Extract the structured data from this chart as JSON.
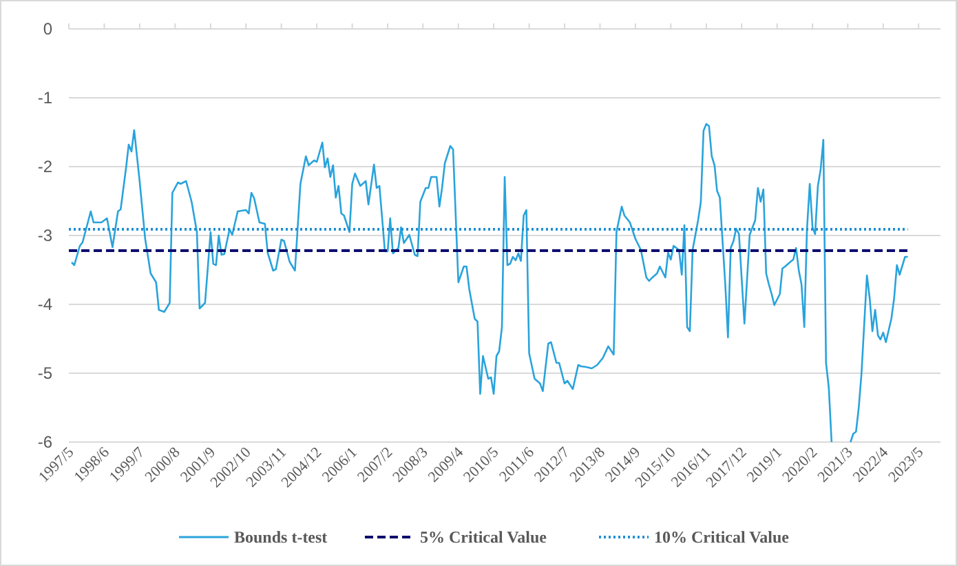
{
  "chart_data": {
    "type": "line",
    "xlim": [
      "1997-05",
      "2024-01"
    ],
    "ylim": [
      -6,
      0
    ],
    "yticks": [
      0,
      -1,
      -2,
      -3,
      -4,
      -5,
      -6
    ],
    "xticks": [
      {
        "value": "1997-05",
        "label": "1997/5"
      },
      {
        "value": "1998-06",
        "label": "1998/6"
      },
      {
        "value": "1999-07",
        "label": "1999/7"
      },
      {
        "value": "2000-08",
        "label": "2000/8"
      },
      {
        "value": "2001-09",
        "label": "2001/9"
      },
      {
        "value": "2002-10",
        "label": "2002/10"
      },
      {
        "value": "2003-11",
        "label": "2003/11"
      },
      {
        "value": "2004-12",
        "label": "2004/12"
      },
      {
        "value": "2006-01",
        "label": "2006/1"
      },
      {
        "value": "2007-02",
        "label": "2007/2"
      },
      {
        "value": "2008-03",
        "label": "2008/3"
      },
      {
        "value": "2009-04",
        "label": "2009/4"
      },
      {
        "value": "2010-05",
        "label": "2010/5"
      },
      {
        "value": "2011-06",
        "label": "2011/6"
      },
      {
        "value": "2012-07",
        "label": "2012/7"
      },
      {
        "value": "2013-08",
        "label": "2013/8"
      },
      {
        "value": "2014-09",
        "label": "2014/9"
      },
      {
        "value": "2015-10",
        "label": "2015/10"
      },
      {
        "value": "2016-11",
        "label": "2016/11"
      },
      {
        "value": "2017-12",
        "label": "2017/12"
      },
      {
        "value": "2019-01",
        "label": "2019/1"
      },
      {
        "value": "2020-02",
        "label": "2020/2"
      },
      {
        "value": "2021-03",
        "label": "2021/3"
      },
      {
        "value": "2022-04",
        "label": "2022/4"
      },
      {
        "value": "2023-05",
        "label": "2023/5"
      }
    ],
    "grid": "y",
    "legend": "bottom",
    "marker": "none",
    "series": [
      {
        "name": "Bounds t-test",
        "color": "#29a3dc",
        "line_style": "solid",
        "x": [
          "1997-06",
          "1997-07",
          "1997-09",
          "1997-10",
          "1998-01",
          "1998-02",
          "1998-05",
          "1998-07",
          "1998-09",
          "1998-11",
          "1998-12",
          "1999-02",
          "1999-03",
          "1999-04",
          "1999-05",
          "1999-07",
          "1999-09",
          "1999-11",
          "2000-01",
          "2000-02",
          "2000-04",
          "2000-06",
          "2000-07",
          "2000-09",
          "2000-10",
          "2000-12",
          "2001-02",
          "2001-04",
          "2001-05",
          "2001-07",
          "2001-09",
          "2001-10",
          "2001-11",
          "2001-12",
          "2002-01",
          "2002-02",
          "2002-04",
          "2002-05",
          "2002-07",
          "2002-10",
          "2002-11",
          "2002-12",
          "2003-01",
          "2003-03",
          "2003-05",
          "2003-06",
          "2003-08",
          "2003-09",
          "2003-11",
          "2003-12",
          "2004-02",
          "2004-04",
          "2004-06",
          "2004-08",
          "2004-09",
          "2004-11",
          "2004-12",
          "2005-02",
          "2005-03",
          "2005-04",
          "2005-05",
          "2005-06",
          "2005-07",
          "2005-08",
          "2005-09",
          "2005-10",
          "2005-12",
          "2006-01",
          "2006-02",
          "2006-04",
          "2006-06",
          "2006-07",
          "2006-09",
          "2006-10",
          "2006-11",
          "2007-01",
          "2007-02",
          "2007-03",
          "2007-04",
          "2007-06",
          "2007-07",
          "2007-08",
          "2007-10",
          "2007-12",
          "2008-01",
          "2008-02",
          "2008-04",
          "2008-05",
          "2008-06",
          "2008-08",
          "2008-09",
          "2008-10",
          "2008-11",
          "2009-01",
          "2009-02",
          "2009-04",
          "2009-06",
          "2009-07",
          "2009-08",
          "2009-10",
          "2009-11",
          "2009-12",
          "2010-01",
          "2010-03",
          "2010-04",
          "2010-05",
          "2010-06",
          "2010-07",
          "2010-08",
          "2010-09",
          "2010-10",
          "2010-11",
          "2010-12",
          "2011-01",
          "2011-02",
          "2011-03",
          "2011-04",
          "2011-05",
          "2011-06",
          "2011-08",
          "2011-10",
          "2011-11",
          "2012-01",
          "2012-02",
          "2012-04",
          "2012-05",
          "2012-07",
          "2012-08",
          "2012-10",
          "2012-12",
          "2013-01",
          "2013-03",
          "2013-05",
          "2013-07",
          "2013-09",
          "2013-11",
          "2014-01",
          "2014-02",
          "2014-04",
          "2014-05",
          "2014-07",
          "2014-09",
          "2014-11",
          "2015-01",
          "2015-02",
          "2015-03",
          "2015-05",
          "2015-06",
          "2015-08",
          "2015-09",
          "2015-10",
          "2015-11",
          "2016-01",
          "2016-02",
          "2016-03",
          "2016-04",
          "2016-05",
          "2016-06",
          "2016-08",
          "2016-09",
          "2016-10",
          "2016-11",
          "2016-12",
          "2017-01",
          "2017-02",
          "2017-03",
          "2017-04",
          "2017-06",
          "2017-07",
          "2017-08",
          "2017-09",
          "2017-10",
          "2017-11",
          "2018-01",
          "2018-03",
          "2018-05",
          "2018-06",
          "2018-07",
          "2018-08",
          "2018-09",
          "2018-10",
          "2018-11",
          "2018-12",
          "2019-02",
          "2019-03",
          "2019-04",
          "2019-06",
          "2019-07",
          "2019-08",
          "2019-09",
          "2019-10",
          "2019-11",
          "2019-12",
          "2020-01",
          "2020-02",
          "2020-03",
          "2020-04",
          "2020-05",
          "2020-06",
          "2020-07",
          "2020-08",
          "2020-09",
          "2020-10",
          "2021-04",
          "2021-05",
          "2021-06",
          "2021-07",
          "2021-08",
          "2021-10",
          "2021-11",
          "2021-12",
          "2022-01",
          "2022-02",
          "2022-03",
          "2022-04",
          "2022-05",
          "2022-07",
          "2022-08",
          "2022-09",
          "2022-10",
          "2022-12",
          "2023-01"
        ],
        "values": [
          -3.39,
          -3.43,
          -3.15,
          -3.1,
          -2.65,
          -2.81,
          -2.81,
          -2.75,
          -3.17,
          -2.65,
          -2.62,
          -2.0,
          -1.68,
          -1.78,
          -1.47,
          -2.21,
          -3.05,
          -3.55,
          -3.68,
          -4.08,
          -4.11,
          -3.98,
          -2.38,
          -2.23,
          -2.25,
          -2.21,
          -2.51,
          -2.95,
          -4.06,
          -3.98,
          -2.95,
          -3.41,
          -3.43,
          -3.0,
          -3.28,
          -3.27,
          -2.91,
          -2.99,
          -2.65,
          -2.63,
          -2.68,
          -2.38,
          -2.46,
          -2.81,
          -2.83,
          -3.25,
          -3.51,
          -3.49,
          -3.06,
          -3.08,
          -3.38,
          -3.51,
          -2.25,
          -1.85,
          -1.98,
          -1.91,
          -1.93,
          -1.65,
          -2.01,
          -1.88,
          -2.15,
          -1.98,
          -2.45,
          -2.28,
          -2.68,
          -2.71,
          -2.95,
          -2.25,
          -2.1,
          -2.28,
          -2.21,
          -2.55,
          -1.97,
          -2.31,
          -2.28,
          -3.23,
          -3.23,
          -2.75,
          -3.26,
          -3.18,
          -2.88,
          -3.11,
          -2.99,
          -3.28,
          -3.3,
          -2.51,
          -2.31,
          -2.31,
          -2.15,
          -2.15,
          -2.58,
          -2.31,
          -1.95,
          -1.7,
          -1.75,
          -3.68,
          -3.45,
          -3.45,
          -3.78,
          -4.21,
          -4.25,
          -5.3,
          -4.75,
          -5.08,
          -5.06,
          -5.3,
          -4.75,
          -4.68,
          -4.33,
          -2.15,
          -3.43,
          -3.41,
          -3.31,
          -3.36,
          -3.26,
          -3.37,
          -2.71,
          -2.63,
          -4.71,
          -5.08,
          -5.15,
          -5.26,
          -4.57,
          -4.55,
          -4.85,
          -4.85,
          -5.15,
          -5.11,
          -5.23,
          -4.88,
          -4.9,
          -4.91,
          -4.93,
          -4.88,
          -4.78,
          -4.61,
          -4.73,
          -2.95,
          -2.58,
          -2.71,
          -2.81,
          -3.05,
          -3.21,
          -3.61,
          -3.66,
          -3.62,
          -3.55,
          -3.45,
          -3.61,
          -3.25,
          -3.35,
          -3.15,
          -3.21,
          -3.57,
          -2.85,
          -4.33,
          -4.39,
          -3.21,
          -2.78,
          -2.51,
          -1.48,
          -1.38,
          -1.41,
          -1.85,
          -1.98,
          -2.35,
          -2.45,
          -3.71,
          -4.48,
          -3.18,
          -3.08,
          -2.9,
          -2.98,
          -4.28,
          -2.99,
          -2.78,
          -2.31,
          -2.51,
          -2.33,
          -3.55,
          -3.71,
          -3.85,
          -4.01,
          -3.85,
          -3.48,
          -3.45,
          -3.38,
          -3.35,
          -3.18,
          -3.51,
          -3.71,
          -4.33,
          -2.91,
          -2.25,
          -2.88,
          -2.98,
          -2.28,
          -2.05,
          -1.61,
          -4.85,
          -5.21,
          -6.0,
          null,
          -6.0,
          -5.88,
          -5.85,
          -5.51,
          -5.01,
          -3.58,
          -3.91,
          -4.39,
          -4.08,
          -4.45,
          -4.51,
          -4.41,
          -4.55,
          -4.21,
          -3.91,
          -3.43,
          -3.57,
          -3.31,
          -3.31
        ]
      },
      {
        "name": "5% Critical Value",
        "color": "#0c0c6e",
        "line_style": "dashed",
        "x": [
          "1997-05",
          "2023-01"
        ],
        "values": [
          -3.22,
          -3.22
        ]
      },
      {
        "name": "10% Critical Value",
        "color": "#1f8fd6",
        "line_style": "dotted",
        "x": [
          "1997-05",
          "2023-01"
        ],
        "values": [
          -2.91,
          -2.91
        ]
      }
    ]
  }
}
